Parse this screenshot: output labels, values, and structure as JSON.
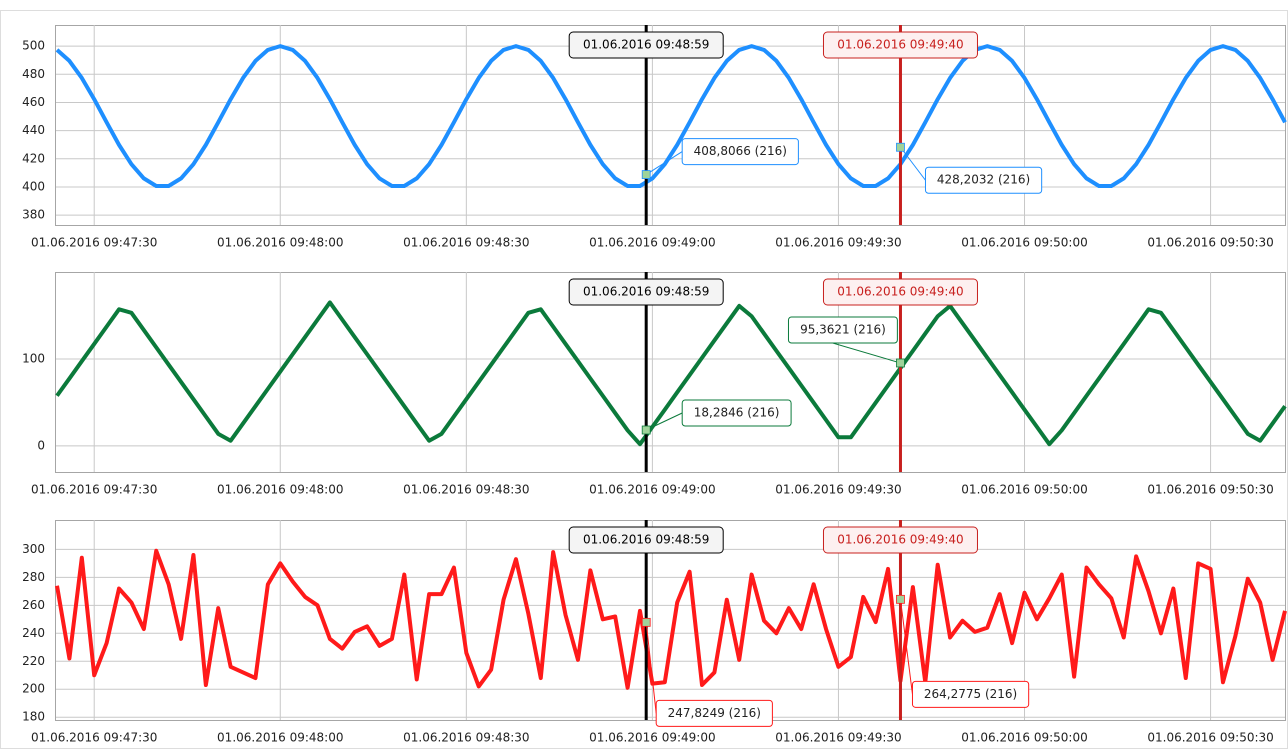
{
  "chart_data": [
    {
      "type": "line",
      "color": "#1e8fff",
      "x": [
        "01.06.2016 09:47:24",
        "01.06.2016 09:47:26",
        "01.06.2016 09:47:28",
        "01.06.2016 09:47:30",
        "01.06.2016 09:47:32",
        "01.06.2016 09:47:34",
        "01.06.2016 09:47:36",
        "01.06.2016 09:47:38",
        "01.06.2016 09:47:40",
        "01.06.2016 09:47:42",
        "01.06.2016 09:47:44",
        "01.06.2016 09:47:46",
        "01.06.2016 09:47:48",
        "01.06.2016 09:47:50",
        "01.06.2016 09:47:52",
        "01.06.2016 09:47:54",
        "01.06.2016 09:47:56",
        "01.06.2016 09:47:58",
        "01.06.2016 09:48:00",
        "01.06.2016 09:48:02",
        "01.06.2016 09:48:04",
        "01.06.2016 09:48:06",
        "01.06.2016 09:48:08",
        "01.06.2016 09:48:10",
        "01.06.2016 09:48:12",
        "01.06.2016 09:48:14",
        "01.06.2016 09:48:16",
        "01.06.2016 09:48:18",
        "01.06.2016 09:48:20",
        "01.06.2016 09:48:22",
        "01.06.2016 09:48:24",
        "01.06.2016 09:48:26",
        "01.06.2016 09:48:28",
        "01.06.2016 09:48:30",
        "01.06.2016 09:48:32",
        "01.06.2016 09:48:34",
        "01.06.2016 09:48:36",
        "01.06.2016 09:48:38",
        "01.06.2016 09:48:40",
        "01.06.2016 09:48:42",
        "01.06.2016 09:48:44",
        "01.06.2016 09:48:46",
        "01.06.2016 09:48:48",
        "01.06.2016 09:48:50",
        "01.06.2016 09:48:52",
        "01.06.2016 09:48:54",
        "01.06.2016 09:48:56",
        "01.06.2016 09:48:58",
        "01.06.2016 09:49:00",
        "01.06.2016 09:49:02",
        "01.06.2016 09:49:04",
        "01.06.2016 09:49:06",
        "01.06.2016 09:49:08",
        "01.06.2016 09:49:10",
        "01.06.2016 09:49:12",
        "01.06.2016 09:49:14",
        "01.06.2016 09:49:16",
        "01.06.2016 09:49:18",
        "01.06.2016 09:49:20",
        "01.06.2016 09:49:22",
        "01.06.2016 09:49:24",
        "01.06.2016 09:49:26",
        "01.06.2016 09:49:28",
        "01.06.2016 09:49:30",
        "01.06.2016 09:49:32",
        "01.06.2016 09:49:34",
        "01.06.2016 09:49:36",
        "01.06.2016 09:49:38",
        "01.06.2016 09:49:40",
        "01.06.2016 09:49:42",
        "01.06.2016 09:49:44",
        "01.06.2016 09:49:46",
        "01.06.2016 09:49:48",
        "01.06.2016 09:49:50",
        "01.06.2016 09:49:52",
        "01.06.2016 09:49:54",
        "01.06.2016 09:49:56",
        "01.06.2016 09:49:58",
        "01.06.2016 09:50:00",
        "01.06.2016 09:50:02",
        "01.06.2016 09:50:04",
        "01.06.2016 09:50:06",
        "01.06.2016 09:50:08",
        "01.06.2016 09:50:10",
        "01.06.2016 09:50:12",
        "01.06.2016 09:50:14",
        "01.06.2016 09:50:16",
        "01.06.2016 09:50:18",
        "01.06.2016 09:50:20",
        "01.06.2016 09:50:22",
        "01.06.2016 09:50:24",
        "01.06.2016 09:50:26",
        "01.06.2016 09:50:28",
        "01.06.2016 09:50:30",
        "01.06.2016 09:50:32",
        "01.06.2016 09:50:34",
        "01.06.2016 09:50:36",
        "01.06.2016 09:50:38",
        "01.06.2016 09:50:40",
        "01.06.2016 09:50:42"
      ],
      "values": [
        497.3,
        489.5,
        477.4,
        462.3,
        445.9,
        429.9,
        416.2,
        406.1,
        400.7,
        400.7,
        406.1,
        416.2,
        429.9,
        445.9,
        462.3,
        477.4,
        489.5,
        497.3,
        500,
        497.3,
        489.5,
        477.4,
        462.3,
        445.9,
        429.9,
        416.2,
        406.1,
        400.7,
        400.7,
        406.1,
        416.2,
        429.9,
        445.9,
        462.3,
        477.4,
        489.5,
        497.3,
        500,
        497.3,
        489.5,
        477.4,
        462.3,
        445.9,
        429.9,
        416.2,
        406.1,
        400.7,
        400.7,
        406.1,
        416.2,
        429.9,
        445.9,
        462.3,
        477.4,
        489.5,
        497.3,
        500,
        497.3,
        489.5,
        477.4,
        462.3,
        445.9,
        429.9,
        416.2,
        406.1,
        400.7,
        400.7,
        406.1,
        416.2,
        429.9,
        445.9,
        462.3,
        477.4,
        489.5,
        497.3,
        500,
        497.3,
        489.5,
        477.4,
        462.3,
        445.9,
        429.9,
        416.2,
        406.1,
        400.7,
        400.7,
        406.1,
        416.2,
        429.9,
        445.9,
        462.3,
        477.4,
        489.5,
        497.3,
        500,
        497.3,
        489.5,
        477.4,
        462.3,
        445.9
      ],
      "xlim": [
        "01.06.2016 09:47:24",
        "01.06.2016 09:50:42"
      ],
      "xticks": [
        "01.06.2016 09:47:30",
        "01.06.2016 09:48:00",
        "01.06.2016 09:48:30",
        "01.06.2016 09:49:00",
        "01.06.2016 09:49:30",
        "01.06.2016 09:50:00",
        "01.06.2016 09:50:30"
      ],
      "ylim": [
        373,
        515
      ],
      "yticks": [
        380,
        400,
        420,
        440,
        460,
        480,
        500
      ],
      "grid": true,
      "cursors": [
        {
          "x": "01.06.2016 09:48:59",
          "color": "#000000",
          "value": 408.8066,
          "value_label": "408,8066 (216)"
        },
        {
          "x": "01.06.2016 09:49:40",
          "color": "#c8201e",
          "value": 428.2032,
          "value_label": "428,2032 (216)"
        }
      ]
    },
    {
      "type": "line",
      "color": "#0b7a3b",
      "x": [
        "01.06.2016 09:47:24",
        "01.06.2016 09:47:26",
        "01.06.2016 09:47:28",
        "01.06.2016 09:47:30",
        "01.06.2016 09:47:32",
        "01.06.2016 09:47:34",
        "01.06.2016 09:47:36",
        "01.06.2016 09:47:38",
        "01.06.2016 09:47:40",
        "01.06.2016 09:47:42",
        "01.06.2016 09:47:44",
        "01.06.2016 09:47:46",
        "01.06.2016 09:47:48",
        "01.06.2016 09:47:50",
        "01.06.2016 09:47:52",
        "01.06.2016 09:47:54",
        "01.06.2016 09:47:56",
        "01.06.2016 09:47:58",
        "01.06.2016 09:48:00",
        "01.06.2016 09:48:02",
        "01.06.2016 09:48:04",
        "01.06.2016 09:48:06",
        "01.06.2016 09:48:08",
        "01.06.2016 09:48:10",
        "01.06.2016 09:48:12",
        "01.06.2016 09:48:14",
        "01.06.2016 09:48:16",
        "01.06.2016 09:48:18",
        "01.06.2016 09:48:20",
        "01.06.2016 09:48:22",
        "01.06.2016 09:48:24",
        "01.06.2016 09:48:26",
        "01.06.2016 09:48:28",
        "01.06.2016 09:48:30",
        "01.06.2016 09:48:32",
        "01.06.2016 09:48:34",
        "01.06.2016 09:48:36",
        "01.06.2016 09:48:38",
        "01.06.2016 09:48:40",
        "01.06.2016 09:48:42",
        "01.06.2016 09:48:44",
        "01.06.2016 09:48:46",
        "01.06.2016 09:48:48",
        "01.06.2016 09:48:50",
        "01.06.2016 09:48:52",
        "01.06.2016 09:48:54",
        "01.06.2016 09:48:56",
        "01.06.2016 09:48:58",
        "01.06.2016 09:49:00",
        "01.06.2016 09:49:02",
        "01.06.2016 09:49:04",
        "01.06.2016 09:49:06",
        "01.06.2016 09:49:08",
        "01.06.2016 09:49:10",
        "01.06.2016 09:49:12",
        "01.06.2016 09:49:14",
        "01.06.2016 09:49:16",
        "01.06.2016 09:49:18",
        "01.06.2016 09:49:20",
        "01.06.2016 09:49:22",
        "01.06.2016 09:49:24",
        "01.06.2016 09:49:26",
        "01.06.2016 09:49:28",
        "01.06.2016 09:49:30",
        "01.06.2016 09:49:32",
        "01.06.2016 09:49:34",
        "01.06.2016 09:49:36",
        "01.06.2016 09:49:38",
        "01.06.2016 09:49:40",
        "01.06.2016 09:49:42",
        "01.06.2016 09:49:44",
        "01.06.2016 09:49:46",
        "01.06.2016 09:49:48",
        "01.06.2016 09:49:50",
        "01.06.2016 09:49:52",
        "01.06.2016 09:49:54",
        "01.06.2016 09:49:56",
        "01.06.2016 09:49:58",
        "01.06.2016 09:50:00",
        "01.06.2016 09:50:02",
        "01.06.2016 09:50:04",
        "01.06.2016 09:50:06",
        "01.06.2016 09:50:08",
        "01.06.2016 09:50:10",
        "01.06.2016 09:50:12",
        "01.06.2016 09:50:14",
        "01.06.2016 09:50:16",
        "01.06.2016 09:50:18",
        "01.06.2016 09:50:20",
        "01.06.2016 09:50:22",
        "01.06.2016 09:50:24",
        "01.06.2016 09:50:26",
        "01.06.2016 09:50:28",
        "01.06.2016 09:50:30",
        "01.06.2016 09:50:32",
        "01.06.2016 09:50:34",
        "01.06.2016 09:50:36",
        "01.06.2016 09:50:38",
        "01.06.2016 09:50:40",
        "01.06.2016 09:50:42"
      ],
      "values": [
        57.7,
        77.5,
        97.4,
        117.3,
        137.2,
        157.1,
        153.1,
        133.2,
        113.3,
        93.4,
        73.6,
        53.7,
        33.8,
        13.9,
        6.0,
        25.8,
        45.7,
        65.6,
        85.5,
        105.4,
        125.2,
        145.1,
        165.0,
        145.1,
        125.2,
        105.4,
        85.5,
        65.6,
        45.7,
        25.8,
        6.0,
        13.9,
        33.8,
        53.7,
        73.6,
        93.4,
        113.3,
        133.2,
        153.1,
        157.1,
        137.2,
        117.3,
        97.4,
        77.5,
        57.7,
        37.8,
        17.9,
        2.0,
        21.9,
        41.7,
        61.6,
        81.5,
        101.4,
        121.3,
        141.1,
        161.0,
        149.1,
        129.2,
        109.3,
        89.5,
        69.6,
        49.7,
        29.8,
        9.9,
        9.9,
        29.8,
        49.7,
        69.6,
        89.5,
        109.3,
        129.2,
        149.1,
        161.0,
        141.1,
        121.3,
        101.4,
        81.5,
        61.6,
        41.7,
        21.9,
        2.0,
        17.9,
        37.8,
        57.7,
        77.5,
        97.4,
        117.3,
        137.2,
        157.1,
        153.1,
        133.2,
        113.3,
        93.4,
        73.6,
        53.7,
        33.8,
        13.9,
        6.0,
        25.8,
        45.7
      ],
      "xlim": [
        "01.06.2016 09:47:24",
        "01.06.2016 09:50:42"
      ],
      "xticks": [
        "01.06.2016 09:47:30",
        "01.06.2016 09:48:00",
        "01.06.2016 09:48:30",
        "01.06.2016 09:49:00",
        "01.06.2016 09:49:30",
        "01.06.2016 09:50:00",
        "01.06.2016 09:50:30"
      ],
      "ylim": [
        -30,
        200
      ],
      "yticks": [
        0,
        100
      ],
      "grid": true,
      "cursors": [
        {
          "x": "01.06.2016 09:48:59",
          "color": "#000000",
          "value": 18.2846,
          "value_label": "18,2846 (216)"
        },
        {
          "x": "01.06.2016 09:49:40",
          "color": "#c8201e",
          "value": 95.3621,
          "value_label": "95,3621 (216)"
        }
      ]
    },
    {
      "type": "line",
      "color": "#ff1a1a",
      "x": [
        "01.06.2016 09:47:24",
        "01.06.2016 09:47:26",
        "01.06.2016 09:47:28",
        "01.06.2016 09:47:30",
        "01.06.2016 09:47:32",
        "01.06.2016 09:47:34",
        "01.06.2016 09:47:36",
        "01.06.2016 09:47:38",
        "01.06.2016 09:47:40",
        "01.06.2016 09:47:42",
        "01.06.2016 09:47:44",
        "01.06.2016 09:47:46",
        "01.06.2016 09:47:48",
        "01.06.2016 09:47:50",
        "01.06.2016 09:47:52",
        "01.06.2016 09:47:54",
        "01.06.2016 09:47:56",
        "01.06.2016 09:47:58",
        "01.06.2016 09:48:00",
        "01.06.2016 09:48:02",
        "01.06.2016 09:48:04",
        "01.06.2016 09:48:06",
        "01.06.2016 09:48:08",
        "01.06.2016 09:48:10",
        "01.06.2016 09:48:12",
        "01.06.2016 09:48:14",
        "01.06.2016 09:48:16",
        "01.06.2016 09:48:18",
        "01.06.2016 09:48:20",
        "01.06.2016 09:48:22",
        "01.06.2016 09:48:24",
        "01.06.2016 09:48:26",
        "01.06.2016 09:48:28",
        "01.06.2016 09:48:30",
        "01.06.2016 09:48:32",
        "01.06.2016 09:48:34",
        "01.06.2016 09:48:36",
        "01.06.2016 09:48:38",
        "01.06.2016 09:48:40",
        "01.06.2016 09:48:42",
        "01.06.2016 09:48:44",
        "01.06.2016 09:48:46",
        "01.06.2016 09:48:48",
        "01.06.2016 09:48:50",
        "01.06.2016 09:48:52",
        "01.06.2016 09:48:54",
        "01.06.2016 09:48:56",
        "01.06.2016 09:48:58",
        "01.06.2016 09:49:00",
        "01.06.2016 09:49:02",
        "01.06.2016 09:49:04",
        "01.06.2016 09:49:06",
        "01.06.2016 09:49:08",
        "01.06.2016 09:49:10",
        "01.06.2016 09:49:12",
        "01.06.2016 09:49:14",
        "01.06.2016 09:49:16",
        "01.06.2016 09:49:18",
        "01.06.2016 09:49:20",
        "01.06.2016 09:49:22",
        "01.06.2016 09:49:24",
        "01.06.2016 09:49:26",
        "01.06.2016 09:49:28",
        "01.06.2016 09:49:30",
        "01.06.2016 09:49:32",
        "01.06.2016 09:49:34",
        "01.06.2016 09:49:36",
        "01.06.2016 09:49:38",
        "01.06.2016 09:49:40",
        "01.06.2016 09:49:42",
        "01.06.2016 09:49:44",
        "01.06.2016 09:49:46",
        "01.06.2016 09:49:48",
        "01.06.2016 09:49:50",
        "01.06.2016 09:49:52",
        "01.06.2016 09:49:54",
        "01.06.2016 09:49:56",
        "01.06.2016 09:49:58",
        "01.06.2016 09:50:00",
        "01.06.2016 09:50:02",
        "01.06.2016 09:50:04",
        "01.06.2016 09:50:06",
        "01.06.2016 09:50:08",
        "01.06.2016 09:50:10",
        "01.06.2016 09:50:12",
        "01.06.2016 09:50:14",
        "01.06.2016 09:50:16",
        "01.06.2016 09:50:18",
        "01.06.2016 09:50:20",
        "01.06.2016 09:50:22",
        "01.06.2016 09:50:24",
        "01.06.2016 09:50:26",
        "01.06.2016 09:50:28",
        "01.06.2016 09:50:30",
        "01.06.2016 09:50:32",
        "01.06.2016 09:50:34",
        "01.06.2016 09:50:36",
        "01.06.2016 09:50:38",
        "01.06.2016 09:50:40",
        "01.06.2016 09:50:42"
      ],
      "values": [
        274,
        222,
        294,
        210,
        233,
        272,
        262,
        243,
        299,
        275,
        236,
        296,
        203,
        258,
        216,
        212,
        208,
        275,
        290,
        277,
        266,
        260,
        236,
        229,
        241,
        245,
        231,
        236,
        282,
        207,
        268,
        268,
        287,
        226,
        202,
        214,
        264,
        293,
        254,
        208,
        298,
        253,
        221,
        285,
        250,
        252,
        201,
        256,
        204,
        205,
        262,
        284,
        203,
        212,
        264,
        221,
        282,
        249,
        240,
        258,
        243,
        275,
        243,
        216,
        223,
        266,
        248,
        286,
        206,
        273,
        205,
        289,
        237,
        249,
        241,
        244,
        268,
        233,
        269,
        250,
        265,
        282,
        209,
        287,
        275,
        265,
        237,
        295,
        270,
        240,
        272,
        208,
        290,
        286,
        205,
        238,
        279,
        262,
        221,
        256
      ],
      "xlim": [
        "01.06.2016 09:47:24",
        "01.06.2016 09:50:42"
      ],
      "xticks": [
        "01.06.2016 09:47:30",
        "01.06.2016 09:48:00",
        "01.06.2016 09:48:30",
        "01.06.2016 09:49:00",
        "01.06.2016 09:49:30",
        "01.06.2016 09:50:00",
        "01.06.2016 09:50:30"
      ],
      "ylim": [
        178,
        321
      ],
      "yticks": [
        180,
        200,
        220,
        240,
        260,
        280,
        300
      ],
      "grid": true,
      "cursors": [
        {
          "x": "01.06.2016 09:48:59",
          "color": "#000000",
          "value": 247.8249,
          "value_label": "247,8249 (216)"
        },
        {
          "x": "01.06.2016 09:49:40",
          "color": "#c8201e",
          "value": 264.2775,
          "value_label": "264,2775 (216)"
        }
      ]
    }
  ]
}
